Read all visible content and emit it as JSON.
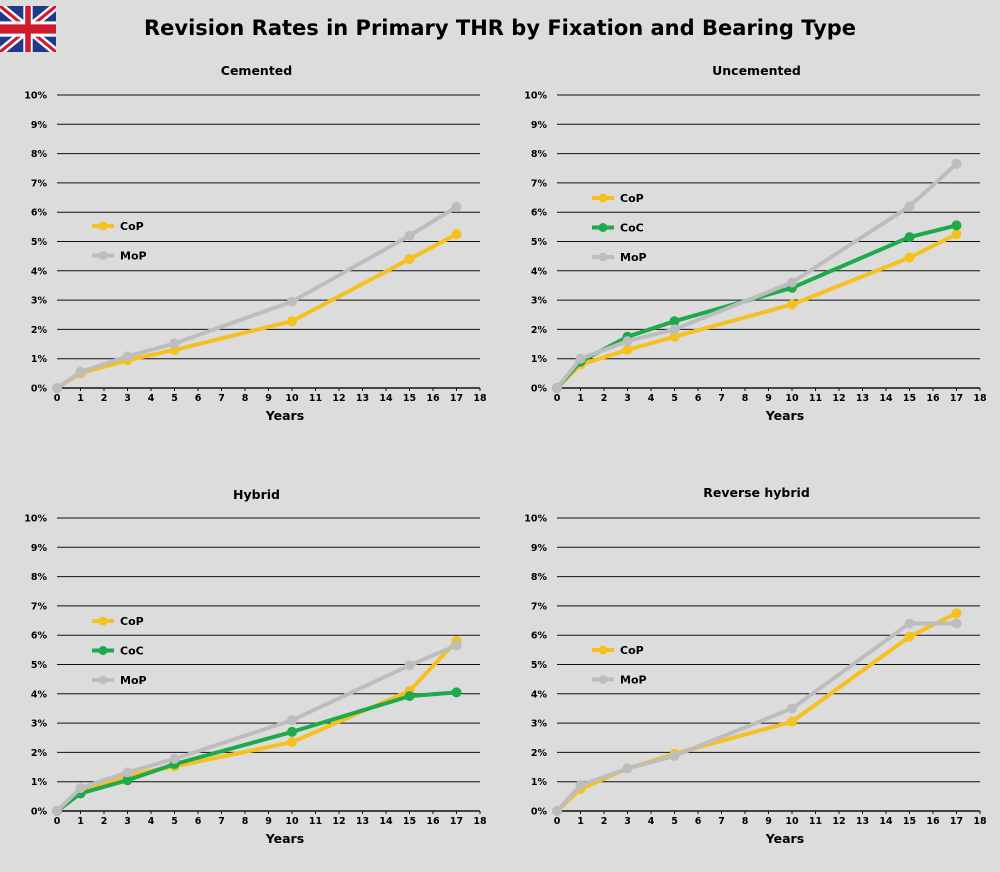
{
  "header": {
    "title": "Revision Rates in Primary THR by Fixation and Bearing Type",
    "flag_icon": "uk-flag-icon"
  },
  "colors": {
    "CoP": "#f4c11f",
    "CoC": "#1ea94b",
    "MoP": "#bdbdbd",
    "grid": "#111111",
    "background": "#dcdcdc"
  },
  "chart_data": [
    {
      "type": "line",
      "title": "Cemented",
      "xlabel": "Years",
      "ylabel": "",
      "xlim": [
        0,
        18
      ],
      "ylim": [
        0,
        10
      ],
      "x_ticks": [
        "0",
        "1",
        "2",
        "3",
        "4",
        "5",
        "6",
        "7",
        "8",
        "9",
        "10",
        "11",
        "12",
        "13",
        "14",
        "15",
        "16",
        "17",
        "18"
      ],
      "y_ticks": [
        "0%",
        "1%",
        "2%",
        "3%",
        "4%",
        "5%",
        "6%",
        "7%",
        "8%",
        "9%",
        "10%"
      ],
      "grid": "horizontal",
      "series": [
        {
          "name": "CoP",
          "x": [
            0,
            1,
            3,
            5,
            10,
            15,
            17
          ],
          "y": [
            0,
            0.5,
            0.95,
            1.3,
            2.28,
            4.4,
            5.25
          ]
        },
        {
          "name": "MoP",
          "x": [
            0,
            1,
            3,
            5,
            10,
            15,
            17
          ],
          "y": [
            0,
            0.55,
            1.08,
            1.52,
            2.95,
            5.2,
            6.18
          ]
        }
      ]
    },
    {
      "type": "line",
      "title": "Uncemented",
      "xlabel": "Years",
      "ylabel": "",
      "xlim": [
        0,
        18
      ],
      "ylim": [
        0,
        10
      ],
      "x_ticks": [
        "0",
        "1",
        "2",
        "3",
        "4",
        "5",
        "6",
        "7",
        "8",
        "9",
        "10",
        "11",
        "12",
        "13",
        "14",
        "15",
        "16",
        "17",
        "18"
      ],
      "y_ticks": [
        "0%",
        "1%",
        "2%",
        "3%",
        "4%",
        "5%",
        "6%",
        "7%",
        "8%",
        "9%",
        "10%"
      ],
      "grid": "horizontal",
      "series": [
        {
          "name": "CoP",
          "x": [
            0,
            1,
            3,
            5,
            10,
            15,
            17
          ],
          "y": [
            0,
            0.8,
            1.3,
            1.75,
            2.85,
            4.45,
            5.25
          ]
        },
        {
          "name": "CoC",
          "x": [
            0,
            1,
            3,
            5,
            10,
            15,
            17
          ],
          "y": [
            0,
            0.9,
            1.75,
            2.28,
            3.42,
            5.15,
            5.55
          ]
        },
        {
          "name": "MoP",
          "x": [
            0,
            1,
            3,
            5,
            10,
            15,
            17
          ],
          "y": [
            0,
            1.0,
            1.6,
            2.0,
            3.6,
            6.2,
            7.65
          ]
        }
      ]
    },
    {
      "type": "line",
      "title": "Hybrid",
      "xlabel": "Years",
      "ylabel": "",
      "xlim": [
        0,
        18
      ],
      "ylim": [
        0,
        10
      ],
      "x_ticks": [
        "0",
        "1",
        "2",
        "3",
        "4",
        "5",
        "6",
        "7",
        "8",
        "9",
        "10",
        "11",
        "12",
        "13",
        "14",
        "15",
        "16",
        "17",
        "18"
      ],
      "y_ticks": [
        "0%",
        "1%",
        "2%",
        "3%",
        "4%",
        "5%",
        "6%",
        "7%",
        "8%",
        "9%",
        "10%"
      ],
      "grid": "horizontal",
      "series": [
        {
          "name": "CoP",
          "x": [
            0,
            1,
            3,
            5,
            10,
            15,
            17
          ],
          "y": [
            0,
            0.65,
            1.22,
            1.52,
            2.35,
            4.1,
            5.8
          ]
        },
        {
          "name": "CoC",
          "x": [
            0,
            1,
            3,
            5,
            10,
            15,
            17
          ],
          "y": [
            0,
            0.6,
            1.05,
            1.6,
            2.7,
            3.92,
            4.05
          ]
        },
        {
          "name": "MoP",
          "x": [
            0,
            1,
            3,
            5,
            10,
            15,
            17
          ],
          "y": [
            0,
            0.78,
            1.32,
            1.78,
            3.1,
            4.97,
            5.65
          ]
        }
      ]
    },
    {
      "type": "line",
      "title": "Reverse hybrid",
      "xlabel": "Years",
      "ylabel": "",
      "xlim": [
        0,
        18
      ],
      "ylim": [
        0,
        10
      ],
      "x_ticks": [
        "0",
        "1",
        "2",
        "3",
        "4",
        "5",
        "6",
        "7",
        "8",
        "9",
        "10",
        "11",
        "12",
        "13",
        "14",
        "15",
        "16",
        "17",
        "18"
      ],
      "y_ticks": [
        "0%",
        "1%",
        "2%",
        "3%",
        "4%",
        "5%",
        "6%",
        "7%",
        "8%",
        "9%",
        "10%"
      ],
      "grid": "horizontal",
      "series": [
        {
          "name": "CoP",
          "x": [
            0,
            1,
            3,
            5,
            10,
            15,
            17
          ],
          "y": [
            0,
            0.75,
            1.45,
            1.95,
            3.05,
            5.95,
            6.75
          ]
        },
        {
          "name": "MoP",
          "x": [
            0,
            1,
            3,
            5,
            10,
            15,
            17
          ],
          "y": [
            0,
            0.88,
            1.45,
            1.88,
            3.5,
            6.4,
            6.4
          ]
        }
      ]
    }
  ]
}
